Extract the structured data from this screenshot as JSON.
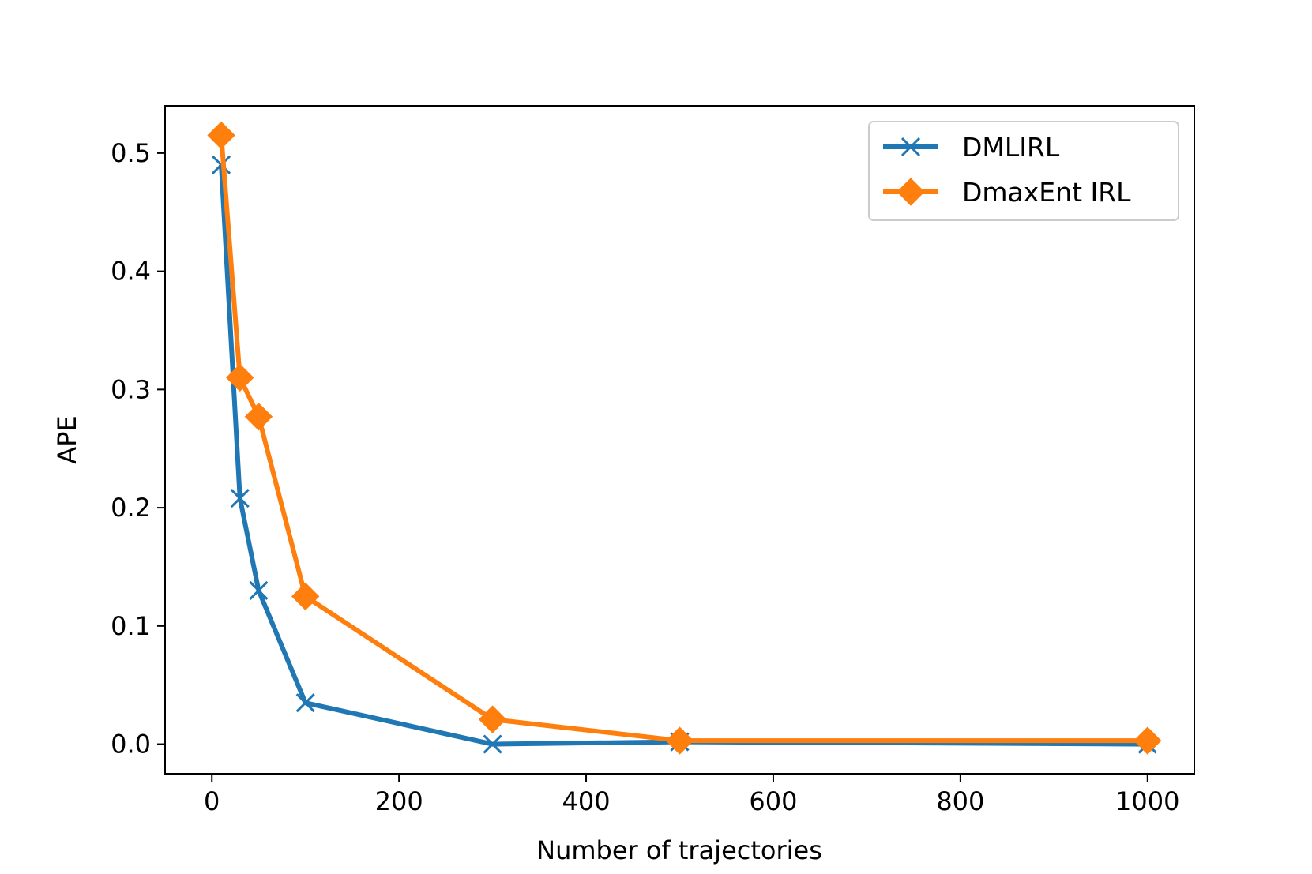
{
  "chart_data": {
    "type": "line",
    "title": "",
    "xlabel": "Number of trajectories",
    "ylabel": "APE",
    "xlim": [
      -50,
      1050
    ],
    "ylim": [
      -0.025,
      0.54
    ],
    "xticks": [
      0,
      200,
      400,
      600,
      800,
      1000
    ],
    "xtick_labels": [
      "0",
      "200",
      "400",
      "600",
      "800",
      "1000"
    ],
    "yticks": [
      0.0,
      0.1,
      0.2,
      0.3,
      0.4,
      0.5
    ],
    "ytick_labels": [
      "0.0",
      "0.1",
      "0.2",
      "0.3",
      "0.4",
      "0.5"
    ],
    "grid": false,
    "legend_position": "top-right",
    "x": [
      10,
      30,
      50,
      100,
      300,
      500,
      1000
    ],
    "series": [
      {
        "name": "DMLIRL",
        "color": "#1f77b4",
        "marker": "x",
        "values": [
          0.49,
          0.208,
          0.13,
          0.035,
          0.0,
          0.002,
          0.0
        ]
      },
      {
        "name": "DmaxEnt IRL",
        "color": "#ff7f0e",
        "marker": "diamond",
        "values": [
          0.515,
          0.31,
          0.277,
          0.125,
          0.021,
          0.003,
          0.003
        ]
      }
    ]
  }
}
